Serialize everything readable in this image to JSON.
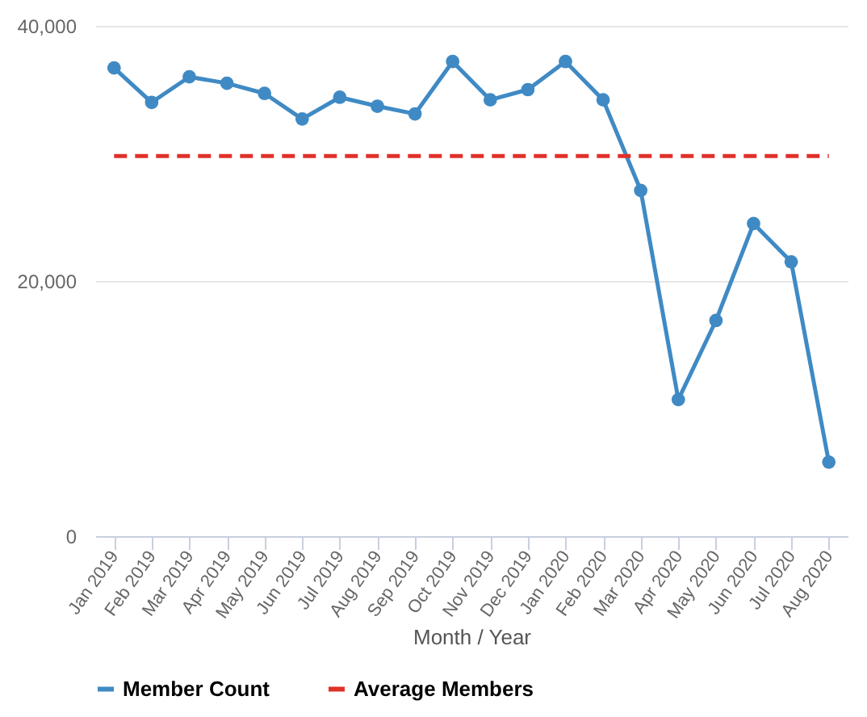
{
  "chart_data": {
    "type": "line",
    "xlabel": "Month / Year",
    "categories": [
      "Jan 2019",
      "Feb 2019",
      "Mar 2019",
      "Apr 2019",
      "May 2019",
      "Jun 2019",
      "Jul 2019",
      "Aug 2019",
      "Sep 2019",
      "Oct 2019",
      "Nov 2019",
      "Dec 2019",
      "Jan 2020",
      "Feb 2020",
      "Mar 2020",
      "Apr 2020",
      "May 2020",
      "Jun 2020",
      "Jul 2020",
      "Aug 2020"
    ],
    "series": [
      {
        "name": "Member Count",
        "color": "#3f8ac4",
        "marker": "circle",
        "line_style": "solid",
        "values": [
          36700,
          34000,
          36000,
          35500,
          34700,
          32700,
          34400,
          33700,
          33100,
          37200,
          34200,
          35000,
          37200,
          34200,
          27100,
          10700,
          16900,
          24500,
          21500,
          5800
        ]
      },
      {
        "name": "Average Members",
        "color": "#e0312a",
        "marker": "none",
        "line_style": "dashed",
        "values": [
          29800,
          29800,
          29800,
          29800,
          29800,
          29800,
          29800,
          29800,
          29800,
          29800,
          29800,
          29800,
          29800,
          29800,
          29800,
          29800,
          29800,
          29800,
          29800,
          29800
        ]
      }
    ],
    "ylim": [
      0,
      40000
    ],
    "yticks": [
      0,
      {
        "value": 20000,
        "label": "20,000"
      },
      {
        "value": 40000,
        "label": "40,000"
      }
    ],
    "grid": "y",
    "legend": "bottom"
  }
}
